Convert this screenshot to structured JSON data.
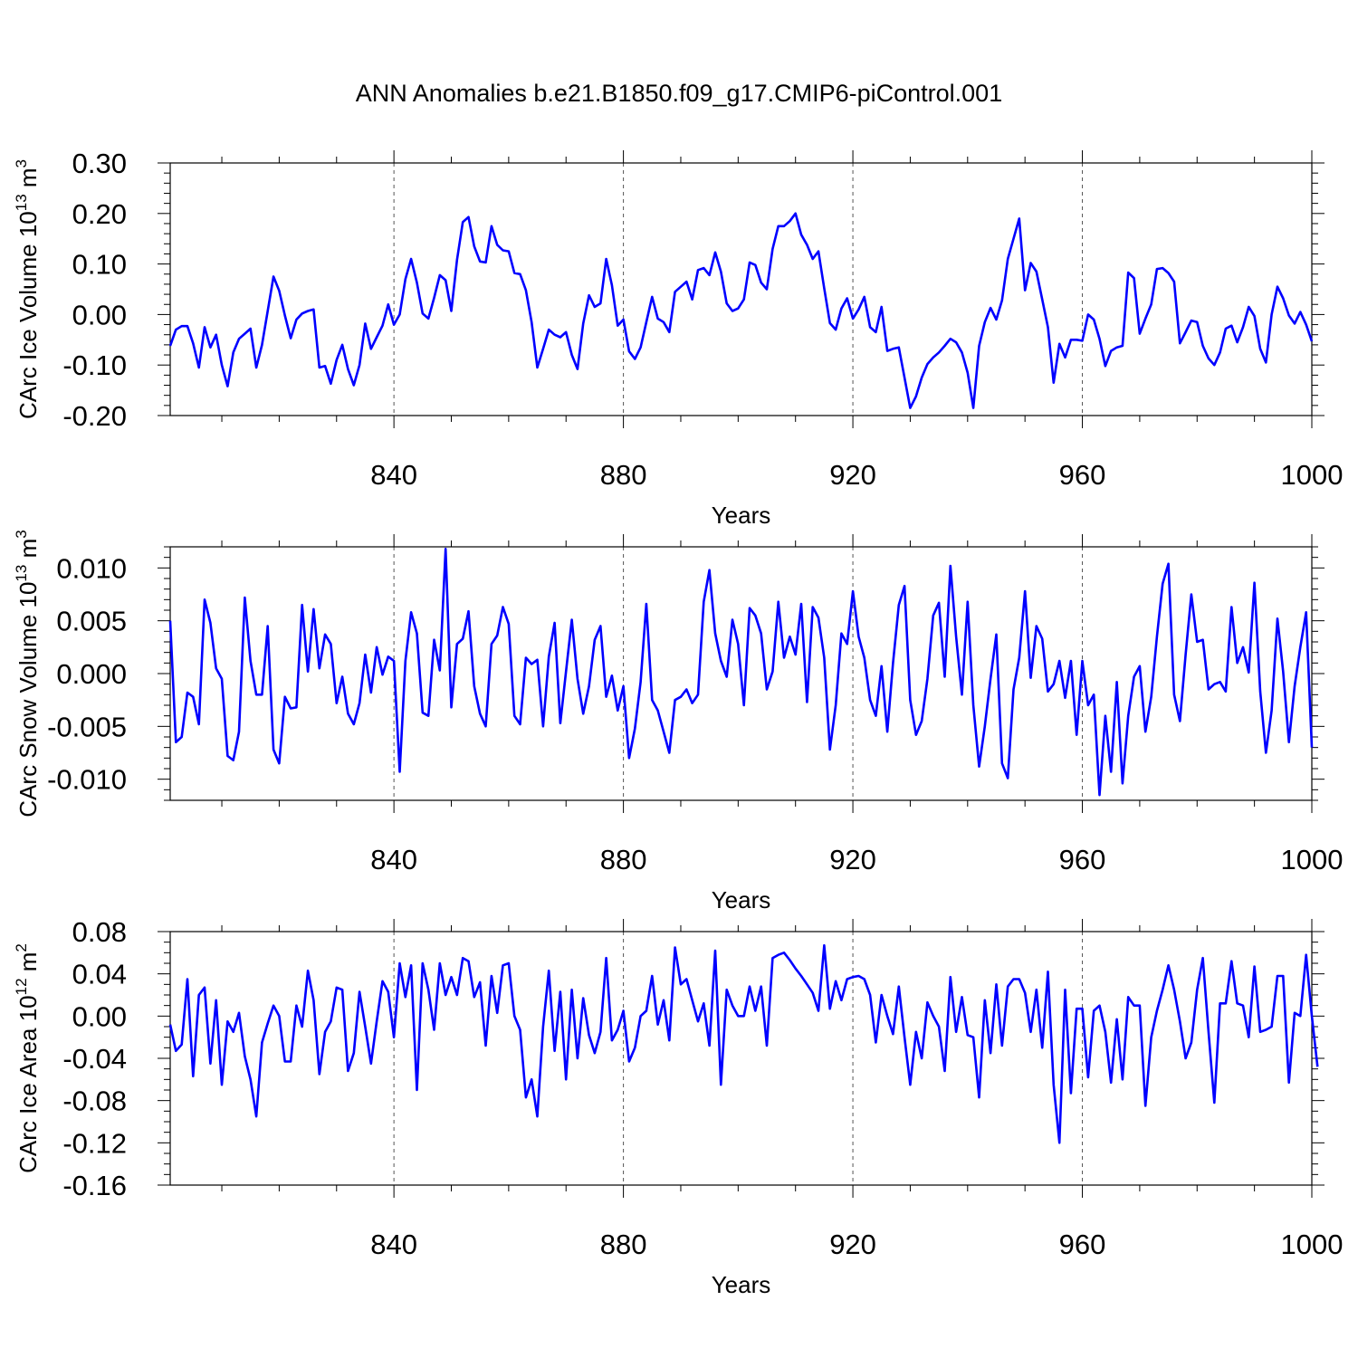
{
  "title": "ANN Anomalies b.e21.B1850.f09_g17.CMIP6-piControl.001",
  "line_color": "#0000ff",
  "chart_data": [
    {
      "type": "line",
      "ylabel": "CArc Ice Volume 10",
      "yunit_exp": "13",
      "yunit": "m",
      "yunit_pow": "3",
      "xlabel": "Years",
      "xlim": [
        801,
        1000
      ],
      "ylim": [
        -0.2,
        0.3
      ],
      "xticks": [
        840,
        880,
        920,
        960,
        1000
      ],
      "xtick_labels": [
        "840",
        "880",
        "920",
        "960",
        "1000"
      ],
      "yticks": [
        0.3,
        0.2,
        0.1,
        0.0,
        -0.1,
        -0.2
      ],
      "ytick_labels": [
        "0.30",
        "0.20",
        "0.10",
        "0.00",
        "-0.10",
        "-0.20"
      ],
      "yminor": 0.02,
      "x_start": 801,
      "values": [
        -0.062,
        -0.03,
        -0.023,
        -0.023,
        -0.057,
        -0.105,
        -0.025,
        -0.065,
        -0.04,
        -0.1,
        -0.142,
        -0.075,
        -0.048,
        -0.038,
        -0.028,
        -0.105,
        -0.06,
        0.007,
        0.075,
        0.047,
        -0.002,
        -0.047,
        -0.01,
        0.002,
        0.007,
        0.01,
        -0.105,
        -0.102,
        -0.137,
        -0.09,
        -0.06,
        -0.108,
        -0.14,
        -0.1,
        -0.018,
        -0.068,
        -0.045,
        -0.022,
        0.02,
        -0.02,
        0.0,
        0.07,
        0.11,
        0.063,
        0.002,
        -0.008,
        0.033,
        0.078,
        0.068,
        0.007,
        0.108,
        0.183,
        0.193,
        0.135,
        0.105,
        0.103,
        0.175,
        0.138,
        0.127,
        0.125,
        0.082,
        0.08,
        0.048,
        -0.015,
        -0.105,
        -0.068,
        -0.03,
        -0.04,
        -0.045,
        -0.035,
        -0.08,
        -0.108,
        -0.018,
        0.038,
        0.015,
        0.022,
        0.11,
        0.058,
        -0.022,
        -0.01,
        -0.073,
        -0.088,
        -0.065,
        -0.015,
        0.035,
        -0.008,
        -0.015,
        -0.035,
        0.045,
        0.055,
        0.065,
        0.03,
        0.088,
        0.092,
        0.078,
        0.123,
        0.085,
        0.022,
        0.007,
        0.012,
        0.03,
        0.103,
        0.098,
        0.063,
        0.05,
        0.13,
        0.175,
        0.175,
        0.185,
        0.2,
        0.158,
        0.138,
        0.11,
        0.125,
        0.052,
        -0.017,
        -0.03,
        0.012,
        0.032,
        -0.008,
        0.01,
        0.035,
        -0.025,
        -0.035,
        0.015,
        -0.072,
        -0.068,
        -0.065,
        -0.125,
        -0.185,
        -0.162,
        -0.125,
        -0.098,
        -0.085,
        -0.075,
        -0.062,
        -0.048,
        -0.055,
        -0.075,
        -0.115,
        -0.185,
        -0.062,
        -0.015,
        0.013,
        -0.01,
        0.028,
        0.11,
        0.15,
        0.19,
        0.048,
        0.102,
        0.085,
        0.03,
        -0.025,
        -0.135,
        -0.058,
        -0.085,
        -0.05,
        -0.05,
        -0.052,
        0.0,
        -0.01,
        -0.048,
        -0.102,
        -0.072,
        -0.065,
        -0.062,
        0.083,
        0.072,
        -0.038,
        -0.008,
        0.02,
        0.09,
        0.092,
        0.082,
        0.065,
        -0.057,
        -0.035,
        -0.012,
        -0.015,
        -0.062,
        -0.087,
        -0.1,
        -0.075,
        -0.028,
        -0.022,
        -0.055,
        -0.025,
        0.015,
        -0.003,
        -0.068,
        -0.095,
        0.0,
        0.055,
        0.032,
        -0.002,
        -0.018,
        0.005,
        -0.02,
        -0.053
      ]
    },
    {
      "type": "line",
      "ylabel": "CArc Snow Volume 10",
      "yunit_exp": "13",
      "yunit": "m",
      "yunit_pow": "3",
      "xlabel": "Years",
      "xlim": [
        801,
        1000
      ],
      "ylim": [
        -0.012,
        0.012
      ],
      "xticks": [
        840,
        880,
        920,
        960,
        1000
      ],
      "xtick_labels": [
        "840",
        "880",
        "920",
        "960",
        "1000"
      ],
      "yticks": [
        0.01,
        0.005,
        0.0,
        -0.005,
        -0.01
      ],
      "ytick_labels": [
        "0.010",
        "0.005",
        "0.000",
        "-0.005",
        "-0.010"
      ],
      "yminor": 0.001,
      "x_start": 801,
      "values": [
        0.005,
        -0.0065,
        -0.006,
        -0.0018,
        -0.0022,
        -0.0048,
        0.007,
        0.0048,
        0.0005,
        -0.0005,
        -0.0078,
        -0.0082,
        -0.0055,
        0.0072,
        0.0012,
        -0.002,
        -0.002,
        0.0045,
        -0.0072,
        -0.0085,
        -0.0022,
        -0.0033,
        -0.0032,
        0.0065,
        0.0002,
        0.0061,
        0.0005,
        0.0037,
        0.0028,
        -0.0028,
        -0.0003,
        -0.0038,
        -0.0048,
        -0.0028,
        0.0018,
        -0.0018,
        0.0025,
        -0.0001,
        0.0016,
        0.0012,
        -0.0093,
        0.0012,
        0.0058,
        0.0038,
        -0.0037,
        -0.004,
        0.0032,
        0.0003,
        0.0118,
        -0.0032,
        0.0028,
        0.0033,
        0.0059,
        -0.0012,
        -0.0038,
        -0.005,
        0.0028,
        0.0036,
        0.0063,
        0.0047,
        -0.004,
        -0.0048,
        0.0015,
        0.0009,
        0.0013,
        -0.005,
        0.0016,
        0.0048,
        -0.0047,
        0.0002,
        0.0051,
        -0.0005,
        -0.0038,
        -0.0012,
        0.0032,
        0.0045,
        -0.0022,
        -0.0002,
        -0.0035,
        -0.0012,
        -0.008,
        -0.0052,
        -0.0008,
        0.0066,
        -0.0025,
        -0.0035,
        -0.0055,
        -0.0075,
        -0.0025,
        -0.0022,
        -0.0015,
        -0.0028,
        -0.002,
        0.0068,
        0.0098,
        0.0038,
        0.0012,
        -0.0003,
        0.0051,
        0.0028,
        -0.003,
        0.0062,
        0.0055,
        0.0038,
        -0.0015,
        0.0002,
        0.0068,
        0.0015,
        0.0035,
        0.0018,
        0.0066,
        -0.0027,
        0.0063,
        0.0053,
        0.0015,
        -0.0072,
        -0.003,
        0.0038,
        0.0028,
        0.0078,
        0.0035,
        0.0015,
        -0.0025,
        -0.004,
        0.0007,
        -0.0055,
        0.001,
        0.0065,
        0.0083,
        -0.0025,
        -0.0058,
        -0.0045,
        -0.0005,
        0.0055,
        0.0067,
        -0.0003,
        0.0102,
        0.0035,
        -0.002,
        0.0068,
        -0.003,
        -0.0088,
        -0.005,
        -0.0005,
        0.0037,
        -0.0085,
        -0.0099,
        -0.0015,
        0.0015,
        0.0078,
        -0.0004,
        0.0045,
        0.0033,
        -0.0017,
        -0.001,
        0.0012,
        -0.0023,
        0.0012,
        -0.0058,
        0.0012,
        -0.003,
        -0.002,
        -0.0115,
        -0.004,
        -0.0093,
        -0.0008,
        -0.0104,
        -0.004,
        -0.0003,
        0.0007,
        -0.0055,
        -0.0022,
        0.0035,
        0.0085,
        0.0104,
        -0.002,
        -0.0045,
        0.0018,
        0.0075,
        0.003,
        0.0032,
        -0.0015,
        -0.001,
        -0.0008,
        -0.0017,
        0.0063,
        0.001,
        0.0025,
        0.0001,
        0.0086,
        -0.0017,
        -0.0075,
        -0.0035,
        0.0052,
        0.0002,
        -0.0065,
        -0.0012,
        0.0025,
        0.0058,
        -0.007
      ]
    },
    {
      "type": "line",
      "ylabel": "CArc Ice Area 10",
      "yunit_exp": "12",
      "yunit": "m",
      "yunit_pow": "2",
      "xlabel": "Years",
      "xlim": [
        801,
        1000
      ],
      "ylim": [
        -0.16,
        0.08
      ],
      "xticks": [
        840,
        880,
        920,
        960,
        1000
      ],
      "xtick_labels": [
        "840",
        "880",
        "920",
        "960",
        "1000"
      ],
      "yticks": [
        0.08,
        0.04,
        0.0,
        -0.04,
        -0.08,
        -0.12,
        -0.16
      ],
      "ytick_labels": [
        "0.08",
        "0.04",
        "0.00",
        "-0.04",
        "-0.08",
        "-0.12",
        "-0.16"
      ],
      "yminor": 0.01,
      "x_start": 801,
      "values": [
        -0.008,
        -0.033,
        -0.027,
        0.035,
        -0.057,
        0.02,
        0.027,
        -0.045,
        0.015,
        -0.065,
        -0.005,
        -0.015,
        0.003,
        -0.038,
        -0.06,
        -0.095,
        -0.025,
        -0.007,
        0.01,
        0.0,
        -0.043,
        -0.043,
        0.01,
        -0.01,
        0.043,
        0.015,
        -0.055,
        -0.015,
        -0.005,
        0.027,
        0.025,
        -0.052,
        -0.035,
        0.023,
        -0.01,
        -0.045,
        -0.005,
        0.033,
        0.023,
        -0.02,
        0.05,
        0.018,
        0.048,
        -0.07,
        0.05,
        0.025,
        -0.013,
        0.05,
        0.02,
        0.037,
        0.02,
        0.055,
        0.052,
        0.018,
        0.032,
        -0.028,
        0.038,
        0.003,
        0.048,
        0.05,
        0.0,
        -0.013,
        -0.077,
        -0.06,
        -0.095,
        -0.01,
        0.043,
        -0.033,
        0.023,
        -0.06,
        0.025,
        -0.04,
        0.017,
        -0.018,
        -0.035,
        -0.015,
        0.055,
        -0.023,
        -0.013,
        0.005,
        -0.043,
        -0.03,
        0.0,
        0.005,
        0.038,
        -0.008,
        0.015,
        -0.023,
        0.065,
        0.03,
        0.035,
        0.015,
        -0.005,
        0.012,
        -0.028,
        0.062,
        -0.065,
        0.025,
        0.01,
        0.0,
        0.0,
        0.028,
        0.005,
        0.028,
        -0.028,
        0.055,
        0.058,
        0.06,
        0.053,
        0.045,
        0.038,
        0.03,
        0.022,
        0.005,
        0.067,
        0.007,
        0.033,
        0.015,
        0.035,
        0.037,
        0.038,
        0.035,
        0.02,
        -0.025,
        0.02,
        0.0,
        -0.017,
        0.028,
        -0.02,
        -0.065,
        -0.015,
        -0.04,
        0.013,
        0.0,
        -0.01,
        -0.052,
        0.037,
        -0.015,
        0.018,
        -0.018,
        -0.02,
        -0.077,
        0.015,
        -0.035,
        0.03,
        -0.028,
        0.028,
        0.035,
        0.035,
        0.022,
        -0.015,
        0.025,
        -0.03,
        0.042,
        -0.065,
        -0.12,
        0.025,
        -0.073,
        0.007,
        0.007,
        -0.058,
        0.005,
        0.01,
        -0.015,
        -0.063,
        -0.003,
        -0.06,
        0.018,
        0.01,
        0.01,
        -0.085,
        -0.02,
        0.005,
        0.025,
        0.048,
        0.025,
        -0.005,
        -0.04,
        -0.025,
        0.025,
        0.055,
        -0.015,
        -0.082,
        0.012,
        0.012,
        0.052,
        0.012,
        0.01,
        -0.02,
        0.047,
        -0.015,
        -0.013,
        -0.01,
        0.038,
        0.038,
        -0.063,
        0.003,
        0.0,
        0.058,
        0.0,
        -0.048
      ]
    }
  ]
}
